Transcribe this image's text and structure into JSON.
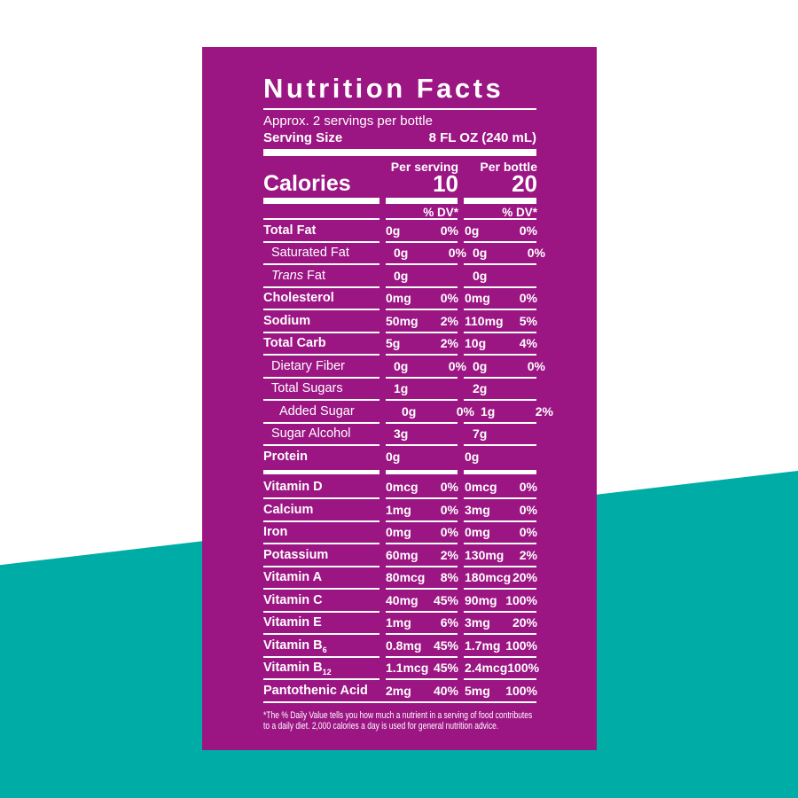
{
  "colors": {
    "background": "#ffffff",
    "teal": "#00ACA6",
    "panel": "#9B1583",
    "text": "#ffffff"
  },
  "label": {
    "title": "Nutrition Facts",
    "servings_line": "Approx. 2 servings per bottle",
    "serving_size_label": "Serving Size",
    "serving_size_value": "8 FL OZ (240 mL)",
    "per_serving_header": "Per serving",
    "per_bottle_header": "Per bottle",
    "calories_label": "Calories",
    "calories_per_serving": "10",
    "calories_per_bottle": "20",
    "dv_header": "% DV*",
    "rows": [
      {
        "label": "Total Fat",
        "bold": true,
        "indent": 0,
        "serving": [
          "0g",
          "0%"
        ],
        "bottle": [
          "0g",
          "0%"
        ],
        "rule": "thin"
      },
      {
        "label": "Saturated Fat",
        "bold": false,
        "indent": 1,
        "serving": [
          "0g",
          "0%"
        ],
        "bottle": [
          "0g",
          "0%"
        ],
        "rule": "thin"
      },
      {
        "label": " Fat",
        "italic": "Trans",
        "bold": false,
        "indent": 1,
        "serving": [
          "0g"
        ],
        "bottle": [
          "0g"
        ],
        "rule": "thin"
      },
      {
        "label": "Cholesterol",
        "bold": true,
        "indent": 0,
        "serving": [
          "0mg",
          "0%"
        ],
        "bottle": [
          "0mg",
          "0%"
        ],
        "rule": "thin"
      },
      {
        "label": "Sodium",
        "bold": true,
        "indent": 0,
        "serving": [
          "50mg",
          "2%"
        ],
        "bottle": [
          "110mg",
          "5%"
        ],
        "rule": "thin"
      },
      {
        "label": "Total Carb",
        "bold": true,
        "indent": 0,
        "serving": [
          "5g",
          "2%"
        ],
        "bottle": [
          "10g",
          "4%"
        ],
        "rule": "thin"
      },
      {
        "label": "Dietary Fiber",
        "bold": false,
        "indent": 1,
        "serving": [
          "0g",
          "0%"
        ],
        "bottle": [
          "0g",
          "0%"
        ],
        "rule": "thin"
      },
      {
        "label": "Total Sugars",
        "bold": false,
        "indent": 1,
        "serving": [
          "1g"
        ],
        "bottle": [
          "2g"
        ],
        "rule": "thin"
      },
      {
        "label": "Added Sugar",
        "bold": false,
        "indent": 2,
        "serving": [
          "0g",
          "0%"
        ],
        "bottle": [
          "1g",
          "2%"
        ],
        "rule": "thin"
      },
      {
        "label": "Sugar Alcohol",
        "bold": false,
        "indent": 1,
        "serving": [
          "3g"
        ],
        "bottle": [
          "7g"
        ],
        "rule": "thin"
      },
      {
        "label": "Protein",
        "bold": true,
        "indent": 0,
        "serving": [
          "0g"
        ],
        "bottle": [
          "0g"
        ],
        "rule": "thick"
      },
      {
        "label": "Vitamin D",
        "bold": true,
        "indent": 0,
        "serving": [
          "0mcg",
          "0%"
        ],
        "bottle": [
          "0mcg",
          "0%"
        ],
        "rule": "thin"
      },
      {
        "label": "Calcium",
        "bold": true,
        "indent": 0,
        "serving": [
          "1mg",
          "0%"
        ],
        "bottle": [
          "3mg",
          "0%"
        ],
        "rule": "thin"
      },
      {
        "label": "Iron",
        "bold": true,
        "indent": 0,
        "serving": [
          "0mg",
          "0%"
        ],
        "bottle": [
          "0mg",
          "0%"
        ],
        "rule": "thin"
      },
      {
        "label": "Potassium",
        "bold": true,
        "indent": 0,
        "serving": [
          "60mg",
          "2%"
        ],
        "bottle": [
          "130mg",
          "2%"
        ],
        "rule": "thin"
      },
      {
        "label": "Vitamin A",
        "bold": true,
        "indent": 0,
        "serving": [
          "80mcg",
          "8%"
        ],
        "bottle": [
          "180mcg",
          "20%"
        ],
        "rule": "thin"
      },
      {
        "label": "Vitamin C",
        "bold": true,
        "indent": 0,
        "serving": [
          "40mg",
          "45%"
        ],
        "bottle": [
          "90mg",
          "100%"
        ],
        "rule": "thin"
      },
      {
        "label": "Vitamin E",
        "bold": true,
        "indent": 0,
        "serving": [
          "1mg",
          "6%"
        ],
        "bottle": [
          "3mg",
          "20%"
        ],
        "rule": "thin"
      },
      {
        "label": "Vitamin B",
        "sub": "6",
        "bold": true,
        "indent": 0,
        "serving": [
          "0.8mg",
          "45%"
        ],
        "bottle": [
          "1.7mg",
          "100%"
        ],
        "rule": "thin"
      },
      {
        "label": "Vitamin B",
        "sub": "12",
        "bold": true,
        "indent": 0,
        "serving": [
          "1.1mcg",
          "45%"
        ],
        "bottle": [
          "2.4mcg",
          "100%"
        ],
        "rule": "thin"
      },
      {
        "label": "Pantothenic Acid",
        "bold": true,
        "indent": 0,
        "serving": [
          "2mg",
          "40%"
        ],
        "bottle": [
          "5mg",
          "100%"
        ],
        "rule": "full"
      }
    ],
    "footnote": "*The % Daily Value tells you how much a nutrient in a serving of food contributes to a daily diet. 2,000 calories a day is used for general nutrition advice."
  }
}
